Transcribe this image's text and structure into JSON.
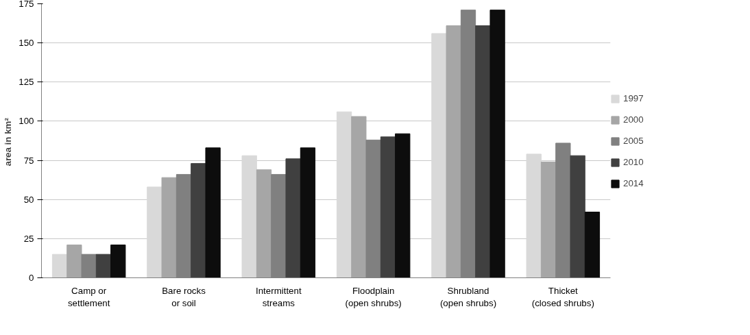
{
  "chart_data": {
    "type": "bar",
    "ylabel": "area  in km²",
    "categories": [
      "Camp or\nsettlement",
      "Bare rocks\nor soil",
      "Intermittent\nstreams",
      "Floodplain\n(open shrubs)",
      "Shrubland\n(open shrubs)",
      "Thicket\n(closed shrubs)"
    ],
    "series": [
      {
        "name": "1997",
        "color": "#d9d9d9",
        "values": [
          15,
          58,
          78,
          106,
          156,
          79
        ]
      },
      {
        "name": "2000",
        "color": "#a6a6a6",
        "values": [
          21,
          64,
          69,
          103,
          161,
          74
        ]
      },
      {
        "name": "2005",
        "color": "#808080",
        "values": [
          15,
          66,
          66,
          88,
          171,
          86
        ]
      },
      {
        "name": "2010",
        "color": "#404040",
        "values": [
          15,
          73,
          76,
          90,
          161,
          78
        ]
      },
      {
        "name": "2014",
        "color": "#0d0d0d",
        "values": [
          21,
          83,
          83,
          92,
          171,
          42
        ]
      }
    ],
    "ylim": [
      0,
      175
    ],
    "yticks": [
      0,
      25,
      50,
      75,
      100,
      125,
      150,
      175
    ],
    "grid": "y",
    "legend": "right"
  }
}
